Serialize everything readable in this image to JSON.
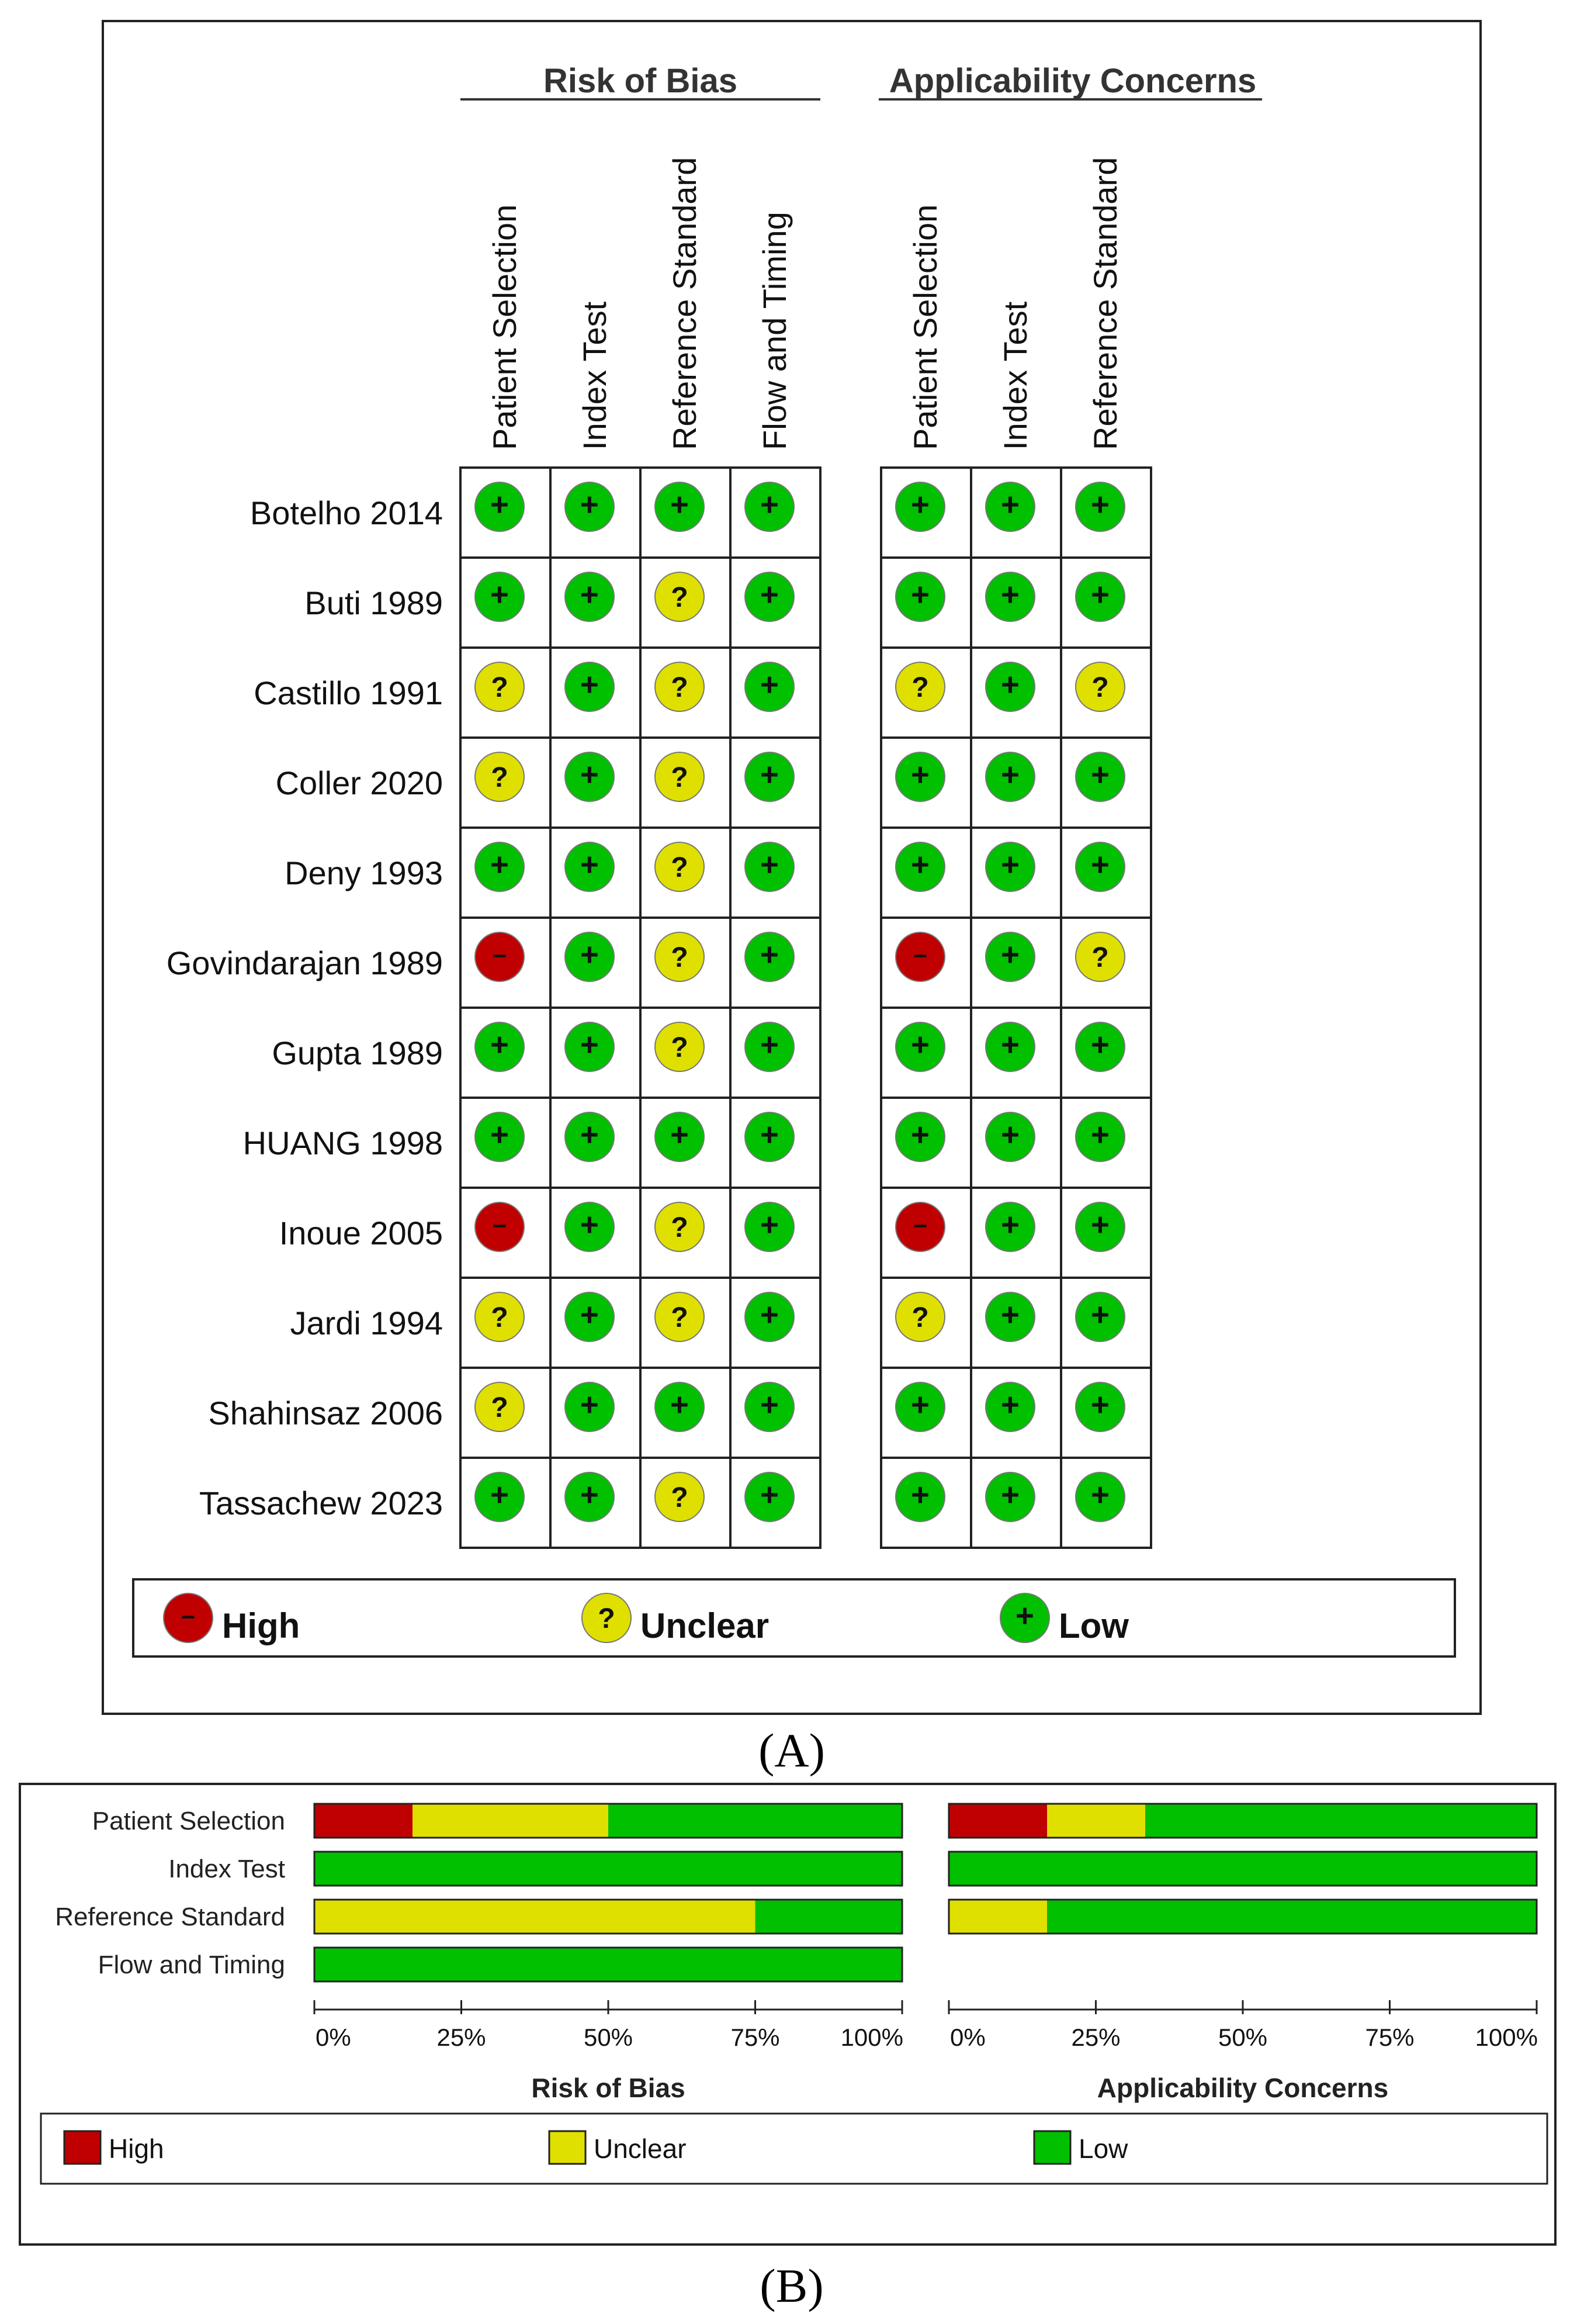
{
  "panel_a_label": "(A)",
  "panel_b_label": "(B)",
  "chart_data": [
    {
      "type": "table",
      "groups": [
        {
          "name": "Risk of Bias",
          "domains": [
            "Patient Selection",
            "Index Test",
            "Reference Standard",
            "Flow and Timing"
          ]
        },
        {
          "name": "Applicability Concerns",
          "domains": [
            "Patient Selection",
            "Index Test",
            "Reference Standard"
          ]
        }
      ],
      "studies": [
        {
          "name": "Botelho 2014",
          "rob": [
            "low",
            "low",
            "low",
            "low"
          ],
          "app": [
            "low",
            "low",
            "low"
          ]
        },
        {
          "name": "Buti 1989",
          "rob": [
            "low",
            "low",
            "unclear",
            "low"
          ],
          "app": [
            "low",
            "low",
            "low"
          ]
        },
        {
          "name": "Castillo 1991",
          "rob": [
            "unclear",
            "low",
            "unclear",
            "low"
          ],
          "app": [
            "unclear",
            "low",
            "unclear"
          ]
        },
        {
          "name": "Coller 2020",
          "rob": [
            "unclear",
            "low",
            "unclear",
            "low"
          ],
          "app": [
            "low",
            "low",
            "low"
          ]
        },
        {
          "name": "Deny 1993",
          "rob": [
            "low",
            "low",
            "unclear",
            "low"
          ],
          "app": [
            "low",
            "low",
            "low"
          ]
        },
        {
          "name": "Govindarajan 1989",
          "rob": [
            "high",
            "low",
            "unclear",
            "low"
          ],
          "app": [
            "high",
            "low",
            "unclear"
          ]
        },
        {
          "name": "Gupta 1989",
          "rob": [
            "low",
            "low",
            "unclear",
            "low"
          ],
          "app": [
            "low",
            "low",
            "low"
          ]
        },
        {
          "name": "HUANG 1998",
          "rob": [
            "low",
            "low",
            "low",
            "low"
          ],
          "app": [
            "low",
            "low",
            "low"
          ]
        },
        {
          "name": "Inoue 2005",
          "rob": [
            "high",
            "low",
            "unclear",
            "low"
          ],
          "app": [
            "high",
            "low",
            "low"
          ]
        },
        {
          "name": "Jardi 1994",
          "rob": [
            "unclear",
            "low",
            "unclear",
            "low"
          ],
          "app": [
            "unclear",
            "low",
            "low"
          ]
        },
        {
          "name": "Shahinsaz 2006",
          "rob": [
            "unclear",
            "low",
            "low",
            "low"
          ],
          "app": [
            "low",
            "low",
            "low"
          ]
        },
        {
          "name": "Tassachew 2023",
          "rob": [
            "low",
            "low",
            "unclear",
            "low"
          ],
          "app": [
            "low",
            "low",
            "low"
          ]
        }
      ],
      "legend": [
        {
          "key": "high",
          "label": "High",
          "symbol": "−",
          "color": "#c00000"
        },
        {
          "key": "unclear",
          "label": "Unclear",
          "symbol": "?",
          "color": "#e0e000"
        },
        {
          "key": "low",
          "label": "Low",
          "symbol": "+",
          "color": "#00c000"
        }
      ]
    },
    {
      "type": "bar",
      "stacked": true,
      "orientation": "horizontal",
      "categories": [
        "Patient Selection",
        "Index Test",
        "Reference Standard",
        "Flow and Timing"
      ],
      "panels": [
        {
          "title": "Risk of Bias",
          "series": [
            {
              "name": "High",
              "values": [
                16.7,
                0,
                0,
                0
              ]
            },
            {
              "name": "Unclear",
              "values": [
                33.3,
                0,
                75,
                0
              ]
            },
            {
              "name": "Low",
              "values": [
                50,
                100,
                25,
                100
              ]
            }
          ]
        },
        {
          "title": "Applicability Concerns",
          "series": [
            {
              "name": "High",
              "values": [
                16.7,
                0,
                0
              ]
            },
            {
              "name": "Unclear",
              "values": [
                16.7,
                0,
                16.7
              ]
            },
            {
              "name": "Low",
              "values": [
                66.6,
                100,
                83.3
              ]
            }
          ]
        }
      ],
      "xticks": [
        "0%",
        "25%",
        "50%",
        "75%",
        "100%"
      ],
      "xlim": [
        0,
        100
      ],
      "legend_placement": "bottom",
      "colors": {
        "High": "#c00000",
        "Unclear": "#e0e000",
        "Low": "#00c000"
      }
    }
  ]
}
